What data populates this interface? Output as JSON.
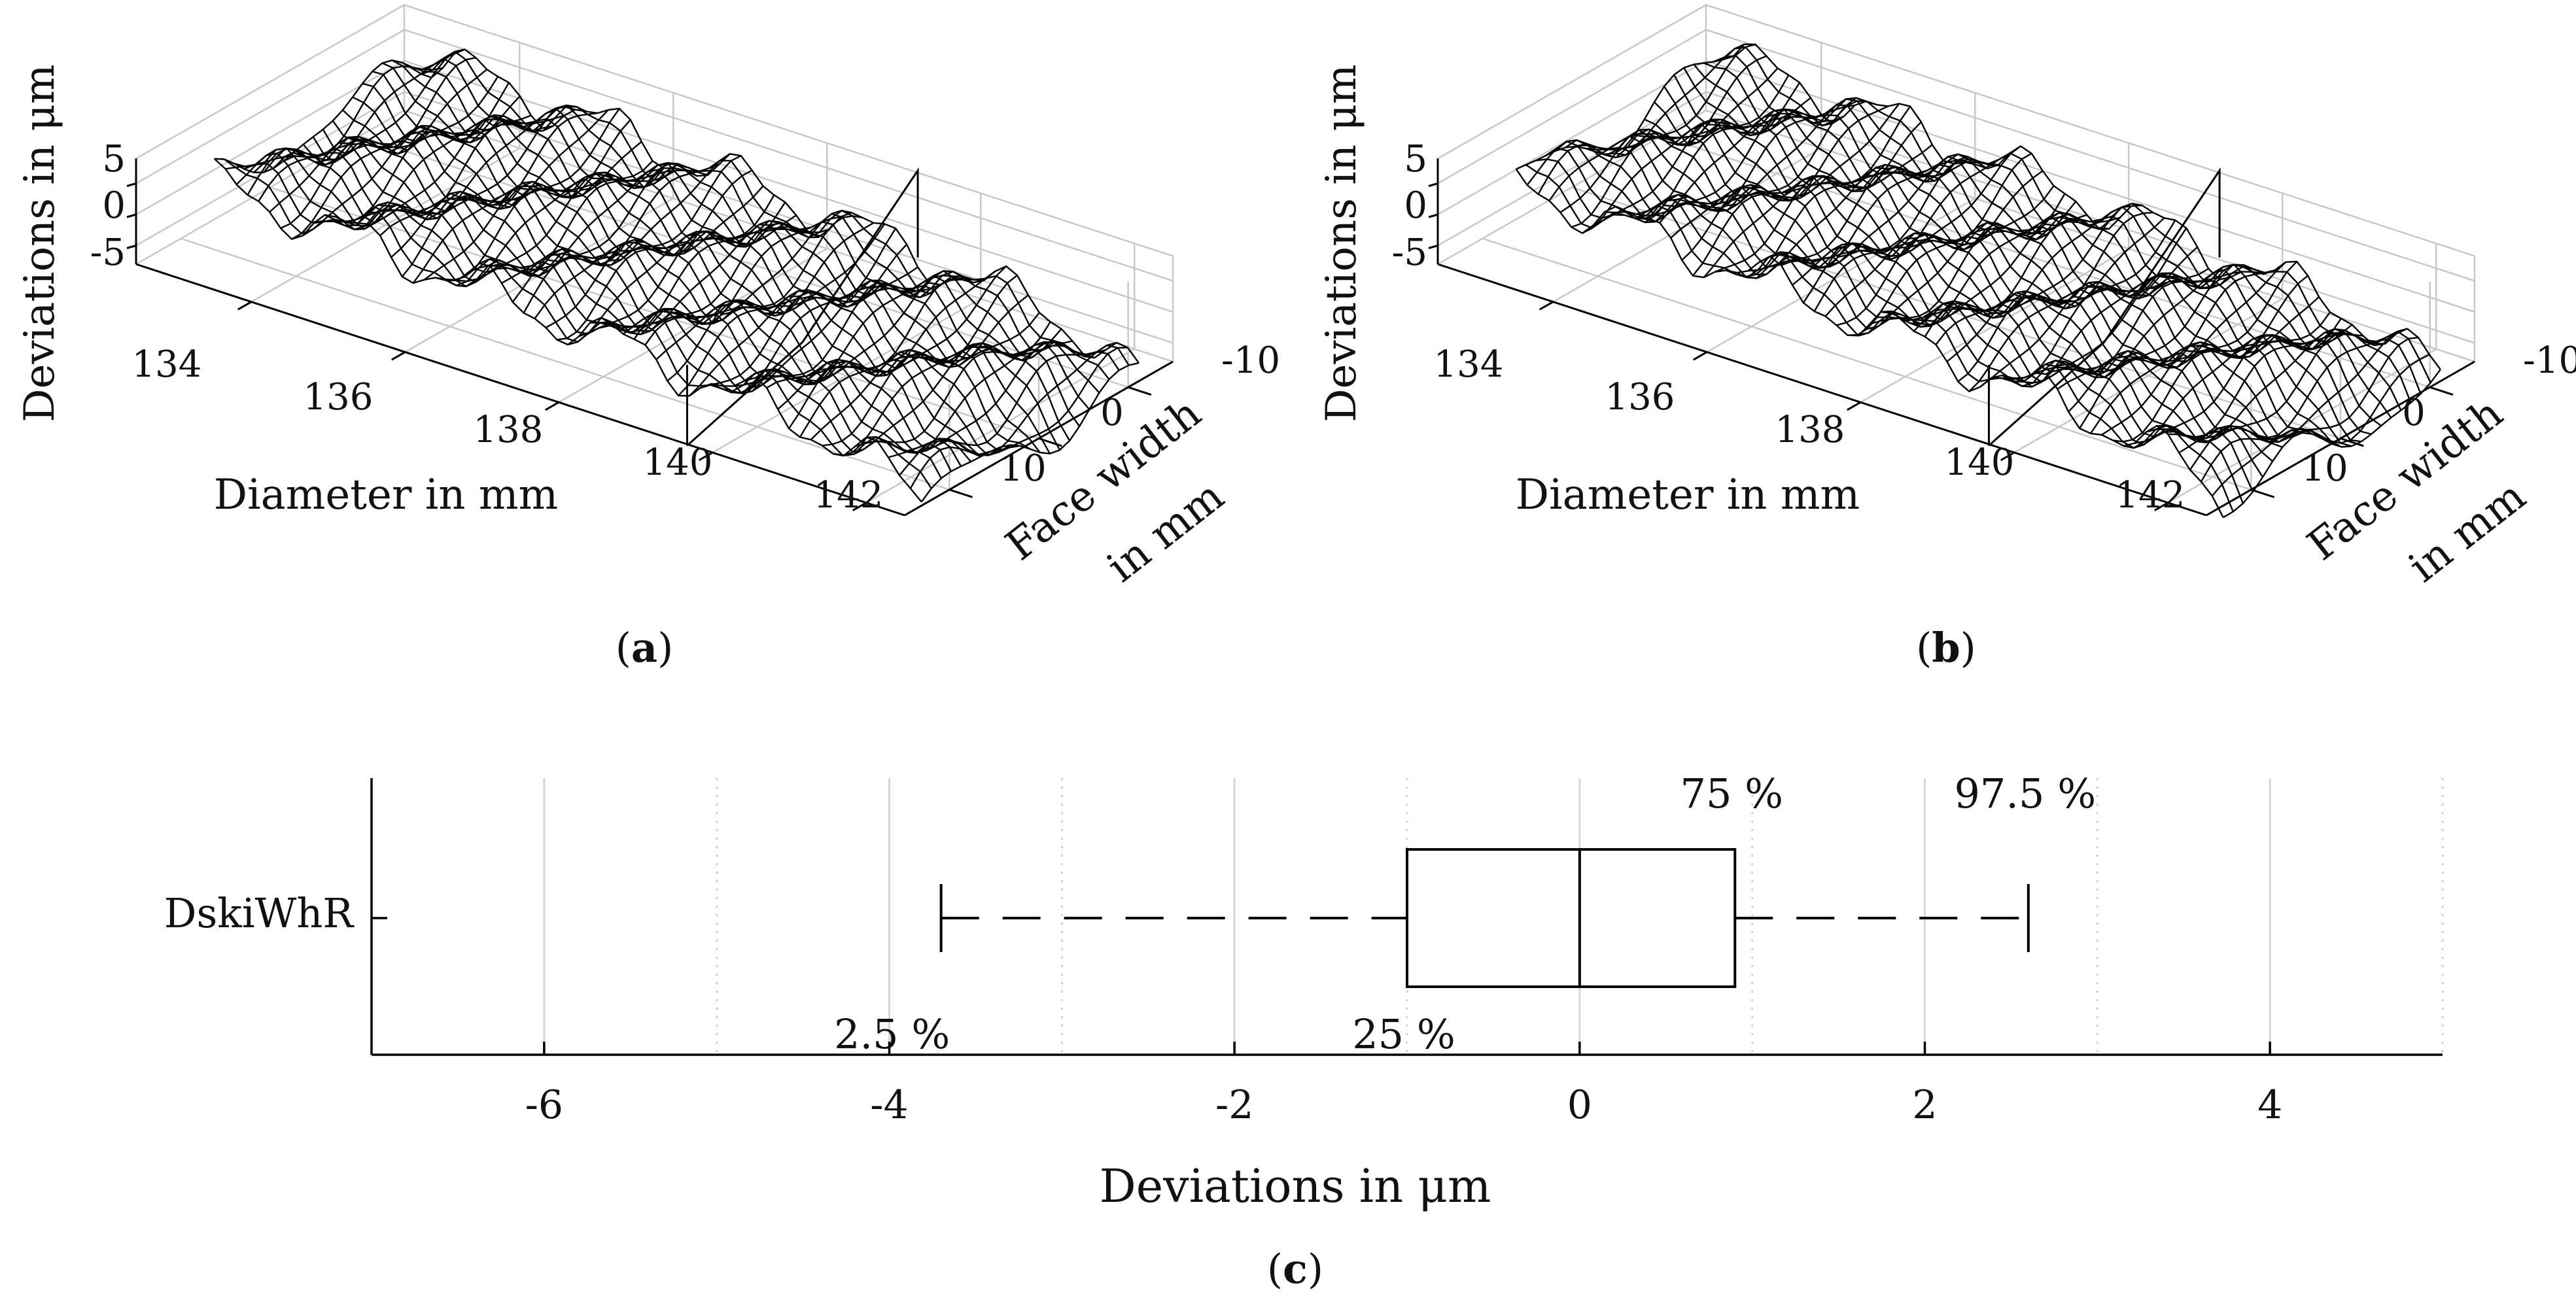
{
  "chart_data": [
    {
      "panel": "a",
      "type": "surface",
      "caption_letter": "a",
      "zlabel": "Deviations in μm",
      "xlabel": "Diameter in mm",
      "ylabel_line1": "Face width",
      "ylabel_line2": "in mm",
      "x_ticks": [
        "134",
        "136",
        "138",
        "140",
        "142"
      ],
      "y_ticks": [
        "-10",
        "0",
        "10"
      ],
      "z_ticks": [
        "5",
        "0",
        "-5"
      ],
      "xlim": [
        132.5,
        142.5
      ],
      "ylim": [
        -15,
        15
      ],
      "zlim": [
        -8,
        8
      ]
    },
    {
      "panel": "b",
      "type": "surface",
      "caption_letter": "b",
      "zlabel": "Deviations in μm",
      "xlabel": "Diameter in mm",
      "ylabel_line1": "Face width",
      "ylabel_line2": "in mm",
      "x_ticks": [
        "134",
        "136",
        "138",
        "140",
        "142"
      ],
      "y_ticks": [
        "-10",
        "0",
        "10"
      ],
      "z_ticks": [
        "5",
        "0",
        "-5"
      ],
      "xlim": [
        132.5,
        142.5
      ],
      "ylim": [
        -15,
        15
      ],
      "zlim": [
        -8,
        8
      ]
    },
    {
      "panel": "c",
      "type": "boxplot",
      "caption_letter": "c",
      "category": "DskiWhR",
      "xlabel": "Deviations in μm",
      "xlim": [
        -7,
        5
      ],
      "x_ticks": [
        -6,
        -4,
        -2,
        0,
        2,
        4
      ],
      "x_tick_labels": [
        "-6",
        "-4",
        "-2",
        "0",
        "2",
        "4"
      ],
      "minor_gridlines": [
        -5,
        -3,
        -1,
        1,
        3,
        5
      ],
      "whisker_low": -3.7,
      "q1": -1.0,
      "median": 0.0,
      "q3": 0.9,
      "whisker_high": 2.6,
      "annotations": {
        "whisker_low": "2.5 %",
        "q1": "25 %",
        "q3": "75 %",
        "whisker_high": "97.5 %"
      }
    }
  ]
}
